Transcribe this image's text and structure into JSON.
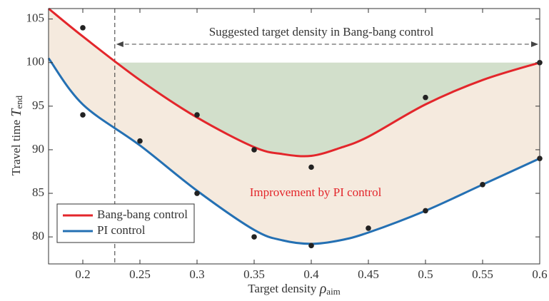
{
  "chart_data": {
    "type": "line",
    "xlabel": {
      "text": "Target density",
      "symbol": "ρ",
      "subscript": "aim"
    },
    "ylabel": {
      "text": "Travel time",
      "symbol": "T",
      "subscript": "end"
    },
    "x": [
      0.17,
      0.2,
      0.25,
      0.3,
      0.35,
      0.375,
      0.4,
      0.425,
      0.45,
      0.5,
      0.55,
      0.6
    ],
    "series": [
      {
        "name": "Bang-bang control",
        "color": "#e3262b",
        "values": [
          106.2,
          103,
          98,
          93.7,
          90.3,
          89.5,
          89.3,
          90.2,
          91.5,
          95.2,
          98,
          100
        ]
      },
      {
        "name": "PI control",
        "color": "#2470b3",
        "values": [
          100.5,
          95.2,
          90.5,
          85.3,
          80.8,
          79.6,
          79.2,
          79.6,
          80.5,
          83,
          86,
          89
        ]
      }
    ],
    "points": {
      "x": [
        0.2,
        0.2,
        0.25,
        0.3,
        0.3,
        0.35,
        0.35,
        0.4,
        0.4,
        0.45,
        0.5,
        0.5,
        0.55,
        0.6,
        0.6
      ],
      "y": [
        104,
        94,
        91,
        94,
        85,
        90,
        80,
        88,
        79,
        81,
        96,
        83,
        86,
        100,
        89
      ],
      "color": "#222222"
    },
    "suggested_range": [
      0.228,
      0.6
    ],
    "reference": 100,
    "annotations": [
      "Suggested target density in Bang-bang control",
      "Improvement by PI control"
    ],
    "xlim": [
      0.17,
      0.6
    ],
    "ylim": [
      76.9,
      106.2
    ],
    "xticks": [
      0.2,
      0.25,
      0.3,
      0.35,
      0.4,
      0.45,
      0.5,
      0.55,
      0.6
    ],
    "yticks": [
      80,
      85,
      90,
      95,
      100,
      105
    ],
    "legend": "lower left",
    "grid": false
  }
}
